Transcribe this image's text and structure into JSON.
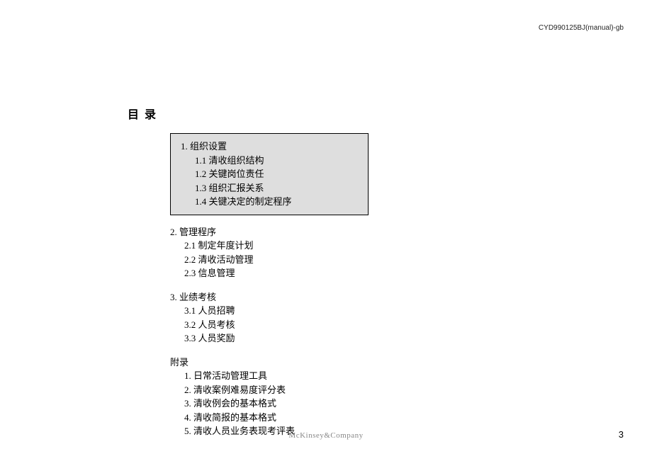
{
  "header_code": "CYD990125BJ(manual)-gb",
  "title": "目 录",
  "sections": [
    {
      "highlighted": true,
      "title": "1. 组织设置",
      "items": [
        "1.1 清收组织结构",
        "1.2 关键岗位责任",
        "1.3 组织汇报关系",
        "1.4 关键决定的制定程序"
      ]
    },
    {
      "highlighted": false,
      "title": "2. 管理程序",
      "items": [
        "2.1 制定年度计划",
        "2.2 清收活动管理",
        "2.3 信息管理"
      ]
    },
    {
      "highlighted": false,
      "title": "3. 业绩考核",
      "items": [
        "3.1 人员招聘",
        "3.2 人员考核",
        "3.3 人员奖励"
      ]
    },
    {
      "highlighted": false,
      "title": "附录",
      "items": [
        "1. 日常活动管理工具",
        "2. 清收案例难易度评分表",
        "3. 清收例会的基本格式",
        "4. 清收简报的基本格式",
        "5. 清收人员业务表现考评表"
      ]
    }
  ],
  "footer_logo": "McKinsey&Company",
  "page_number": "3",
  "colors": {
    "background": "#ffffff",
    "box_background": "#dedede",
    "box_border": "#000000",
    "text": "#000000",
    "header_text": "#252525",
    "footer_text": "#888888"
  },
  "typography": {
    "title_fontsize": 16,
    "body_fontsize": 13,
    "header_fontsize": 10,
    "footer_fontsize": 11
  }
}
